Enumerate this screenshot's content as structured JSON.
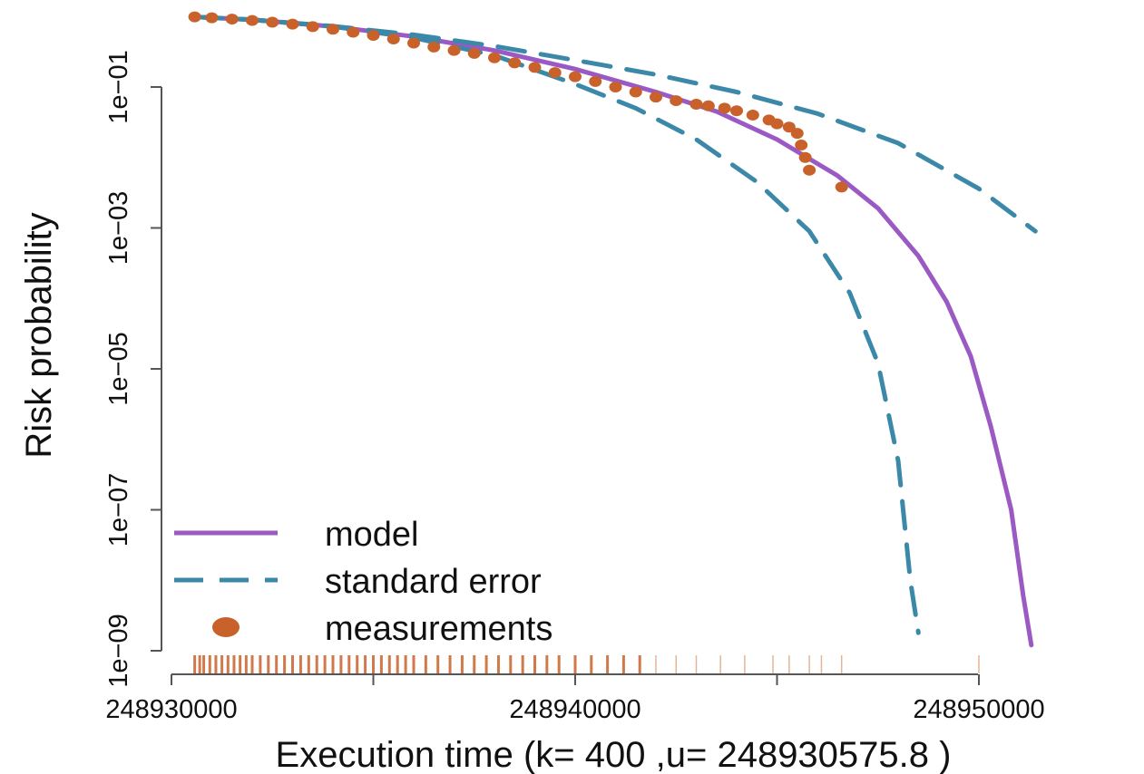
{
  "chart_data": {
    "type": "line",
    "xlabel": "Execution time (k= 400 ,u= 248930575.8 )",
    "ylabel": "Risk probability",
    "xlim": [
      248929900,
      248952300
    ],
    "ylim": [
      1e-09,
      1.0
    ],
    "y_scale": "log",
    "grid": false,
    "legend_position": "bottom-left",
    "x_ticks": [
      248930000,
      248935000,
      248940000,
      248945000,
      248950000
    ],
    "x_tick_labels": [
      "248930000",
      "",
      "248940000",
      "",
      "248950000"
    ],
    "y_ticks": [
      0.1,
      0.001,
      1e-05,
      1e-07,
      1e-09
    ],
    "y_tick_labels": [
      "1e−01",
      "1e−03",
      "1e−05",
      "1e−07",
      "1e−09"
    ],
    "series": [
      {
        "name": "model",
        "style": "solid",
        "color": "#9b59c4",
        "x": [
          248930575.8,
          248932000,
          248934000,
          248936000,
          248938000,
          248940000,
          248942000,
          248943500,
          248945000,
          248946500,
          248947500,
          248948500,
          248949200,
          248949800,
          248950300,
          248950800,
          248951100,
          248951300
        ],
        "y": [
          0.99,
          0.9,
          0.72,
          0.52,
          0.33,
          0.18,
          0.085,
          0.045,
          0.018,
          0.0055,
          0.0019,
          0.0004,
          9e-05,
          1.5e-05,
          1.5e-06,
          1e-07,
          6e-09,
          1.2e-09
        ]
      },
      {
        "name": "standard error",
        "style": "dashed",
        "color": "#3b88a8",
        "x": [
          248930575.8,
          248932000,
          248934000,
          248936000,
          248938000,
          248940000,
          248942000,
          248944000,
          248946000,
          248948000,
          248950000,
          248951400
        ],
        "y": [
          0.99,
          0.9,
          0.73,
          0.55,
          0.38,
          0.24,
          0.15,
          0.085,
          0.042,
          0.016,
          0.0036,
          0.0009
        ]
      },
      {
        "name": "",
        "style": "dashed",
        "color": "#3b88a8",
        "x": [
          248930575.8,
          248932000,
          248934000,
          248936000,
          248938000,
          248940000,
          248941500,
          248943000,
          248944500,
          248945800,
          248946800,
          248947500,
          248948000,
          248948300,
          248948500
        ],
        "y": [
          0.99,
          0.9,
          0.72,
          0.5,
          0.28,
          0.11,
          0.05,
          0.018,
          0.0045,
          0.0009,
          0.00012,
          1.2e-05,
          5e-07,
          1e-08,
          1.8e-09
        ]
      },
      {
        "name": "measurements",
        "style": "points",
        "color": "#c8612a",
        "x": [
          248930575.8,
          248931000,
          248931500,
          248932000,
          248932500,
          248933000,
          248933500,
          248934000,
          248934500,
          248935000,
          248935500,
          248936000,
          248936500,
          248937000,
          248937500,
          248938000,
          248938500,
          248939000,
          248939500,
          248940000,
          248940500,
          248941000,
          248941500,
          248942000,
          248942500,
          248943000,
          248943300,
          248943700,
          248944000,
          248944400,
          248944800,
          248945000,
          248945300,
          248945500,
          248945600,
          248945700,
          248945800,
          248946600
        ],
        "y": [
          0.99,
          0.96,
          0.92,
          0.88,
          0.83,
          0.78,
          0.72,
          0.66,
          0.6,
          0.54,
          0.48,
          0.42,
          0.37,
          0.33,
          0.3,
          0.26,
          0.22,
          0.19,
          0.16,
          0.14,
          0.12,
          0.1,
          0.085,
          0.072,
          0.064,
          0.057,
          0.054,
          0.05,
          0.046,
          0.04,
          0.034,
          0.03,
          0.027,
          0.022,
          0.015,
          0.01,
          0.0066,
          0.0038
        ]
      }
    ],
    "rug_marks_x": [
      248930575.8,
      248930700,
      248930800,
      248930950,
      248931100,
      248931250,
      248931400,
      248931550,
      248931700,
      248931850,
      248932000,
      248932200,
      248932400,
      248932600,
      248932800,
      248933000,
      248933200,
      248933400,
      248933600,
      248933800,
      248934000,
      248934200,
      248934400,
      248934600,
      248934800,
      248935000,
      248935200,
      248935400,
      248935600,
      248935800,
      248936000,
      248936300,
      248936600,
      248936900,
      248937200,
      248937500,
      248937800,
      248938100,
      248938400,
      248938700,
      248939000,
      248939300,
      248939600,
      248940000,
      248940400,
      248940800,
      248941200,
      248941600,
      248942000,
      248942500,
      248943000,
      248943600,
      248944200,
      248944900,
      248945300,
      248945800,
      248946100,
      248946600,
      248950000
    ],
    "legend": {
      "model": "model",
      "standard_error": "standard error",
      "measurements": "measurements"
    }
  }
}
